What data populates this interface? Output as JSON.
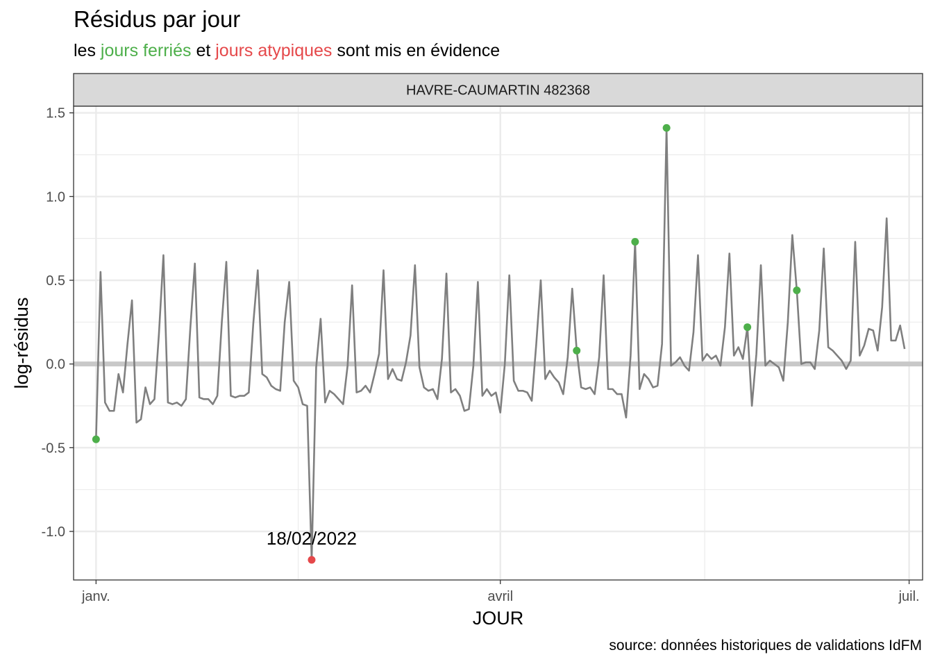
{
  "title": "Résidus par jour",
  "subtitle": {
    "prefix": "les ",
    "holidays": "jours ferriés",
    "middle": " et ",
    "atypical": "jours atypiques",
    "suffix": " sont mis en évidence"
  },
  "caption": "source: données historiques de validations IdFM",
  "colors": {
    "line": "#7f7f7f",
    "holiday": "#4daf4a",
    "atypical": "#e5484a",
    "strip": "#d9d9d9",
    "grid": "#ebebeb",
    "zero_band": "#c8c8c8"
  },
  "chart_data": {
    "type": "line",
    "facet": "HAVRE-CAUMARTIN 482368",
    "xlabel": "JOUR",
    "ylabel": "log-résidus",
    "ylim": [
      -1.29,
      1.54
    ],
    "y_ticks": [
      1.5,
      1.0,
      0.5,
      0.0,
      -0.5,
      -1.0
    ],
    "y_tick_labels": [
      "1.5",
      "1.0",
      "0.5",
      "0.0",
      "-0.5",
      "-1.0"
    ],
    "x_range": [
      "2021-12-27",
      "2022-07-04"
    ],
    "x_ticks": [
      "2022-01-01",
      "2022-04-01",
      "2022-07-01"
    ],
    "x_tick_labels": [
      "janv.",
      "avril",
      "juil."
    ],
    "grid": true,
    "zero_line": 0,
    "x_start": "2022-01-01",
    "values": [
      -0.45,
      0.55,
      -0.23,
      -0.28,
      -0.28,
      -0.06,
      -0.17,
      0.12,
      0.38,
      -0.35,
      -0.33,
      -0.14,
      -0.24,
      -0.21,
      0.18,
      0.65,
      -0.23,
      -0.24,
      -0.23,
      -0.25,
      -0.21,
      0.22,
      0.6,
      -0.2,
      -0.21,
      -0.21,
      -0.24,
      -0.19,
      0.25,
      0.61,
      -0.19,
      -0.2,
      -0.19,
      -0.19,
      -0.17,
      0.24,
      0.56,
      -0.06,
      -0.08,
      -0.13,
      -0.15,
      -0.16,
      0.25,
      0.49,
      -0.1,
      -0.14,
      -0.24,
      -0.25,
      -1.17,
      -0.02,
      0.27,
      -0.23,
      -0.16,
      -0.18,
      -0.21,
      -0.24,
      -0.01,
      0.47,
      -0.17,
      -0.16,
      -0.13,
      -0.17,
      -0.06,
      0.06,
      0.56,
      -0.09,
      -0.03,
      -0.09,
      -0.1,
      0.01,
      0.17,
      0.59,
      -0.02,
      -0.14,
      -0.16,
      -0.15,
      -0.21,
      0.03,
      0.54,
      -0.17,
      -0.15,
      -0.19,
      -0.28,
      -0.27,
      -0.01,
      0.49,
      -0.19,
      -0.15,
      -0.19,
      -0.17,
      -0.29,
      0.0,
      0.53,
      -0.1,
      -0.16,
      -0.16,
      -0.17,
      -0.22,
      0.12,
      0.5,
      -0.09,
      -0.04,
      -0.08,
      -0.11,
      -0.18,
      0.04,
      0.45,
      0.08,
      -0.14,
      -0.15,
      -0.14,
      -0.18,
      0.04,
      0.53,
      -0.15,
      -0.15,
      -0.18,
      -0.18,
      -0.32,
      0.05,
      0.73,
      -0.15,
      -0.06,
      -0.09,
      -0.14,
      -0.13,
      0.12,
      1.41,
      -0.01,
      0.01,
      0.04,
      -0.01,
      -0.04,
      0.19,
      0.65,
      0.02,
      0.06,
      0.03,
      0.05,
      -0.01,
      0.22,
      0.66,
      0.05,
      0.1,
      0.03,
      0.22,
      -0.25,
      0.06,
      0.59,
      -0.01,
      0.02,
      0.0,
      -0.02,
      -0.1,
      0.25,
      0.77,
      0.44,
      0.0,
      0.01,
      0.01,
      -0.03,
      0.2,
      0.69,
      0.1,
      0.08,
      0.05,
      0.02,
      -0.03,
      0.02,
      0.73,
      0.05,
      0.11,
      0.21,
      0.2,
      0.08,
      0.34,
      0.87,
      0.14,
      0.14,
      0.23,
      0.09
    ],
    "highlights": [
      {
        "date": "2022-01-01",
        "value": -0.45,
        "kind": "holiday"
      },
      {
        "date": "2022-02-18",
        "value": -1.17,
        "kind": "atypical",
        "label": "18/02/2022"
      },
      {
        "date": "2022-04-18",
        "value": 0.08,
        "kind": "holiday"
      },
      {
        "date": "2022-05-01",
        "value": 0.73,
        "kind": "holiday"
      },
      {
        "date": "2022-05-08",
        "value": 1.41,
        "kind": "holiday"
      },
      {
        "date": "2022-05-26",
        "value": 0.22,
        "kind": "holiday"
      },
      {
        "date": "2022-06-06",
        "value": 0.44,
        "kind": "holiday"
      }
    ]
  }
}
